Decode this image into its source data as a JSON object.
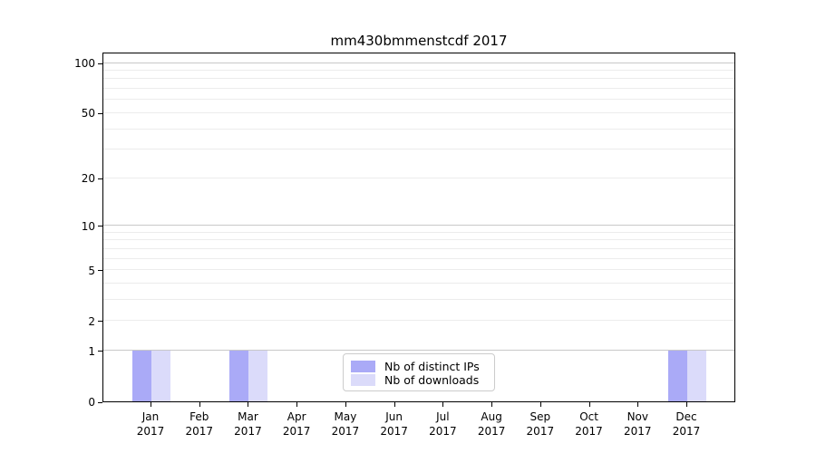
{
  "figure": {
    "title": "mm430bmmenstcdf 2017"
  },
  "chart_data": {
    "type": "bar",
    "title": "mm430bmmenstcdf 2017",
    "xlabel": "",
    "ylabel": "",
    "categories": [
      "Jan",
      "Feb",
      "Mar",
      "Apr",
      "May",
      "Jun",
      "Jul",
      "Aug",
      "Sep",
      "Oct",
      "Nov",
      "Dec"
    ],
    "category_year": "2017",
    "series": [
      {
        "name": "Nb of distinct IPs",
        "color": "#aaaaf7",
        "values": [
          1,
          0,
          1,
          0,
          0,
          0,
          0,
          0,
          0,
          0,
          0,
          1
        ]
      },
      {
        "name": "Nb of downloads",
        "color": "#dbdbfa",
        "values": [
          1,
          0,
          1,
          0,
          0,
          0,
          0,
          0,
          0,
          0,
          0,
          1
        ]
      }
    ],
    "yscale": "log1p",
    "ylim": [
      0,
      117
    ],
    "yticks": [
      0,
      1,
      2,
      5,
      10,
      20,
      50,
      100
    ],
    "ytick_labels": [
      "0",
      "1",
      "2",
      "5",
      "10",
      "20",
      "50",
      "100"
    ],
    "major_gridlines": [
      1,
      10,
      100
    ],
    "minor_gridlines": [
      2,
      3,
      4,
      5,
      6,
      7,
      8,
      9,
      20,
      30,
      40,
      50,
      60,
      70,
      80,
      90
    ],
    "grid": true,
    "legend_position": "lower center",
    "colors": {
      "grid_major": "#c8c8c8",
      "grid_minor": "#ececec",
      "frame": "#000000",
      "background": "#ffffff"
    }
  }
}
